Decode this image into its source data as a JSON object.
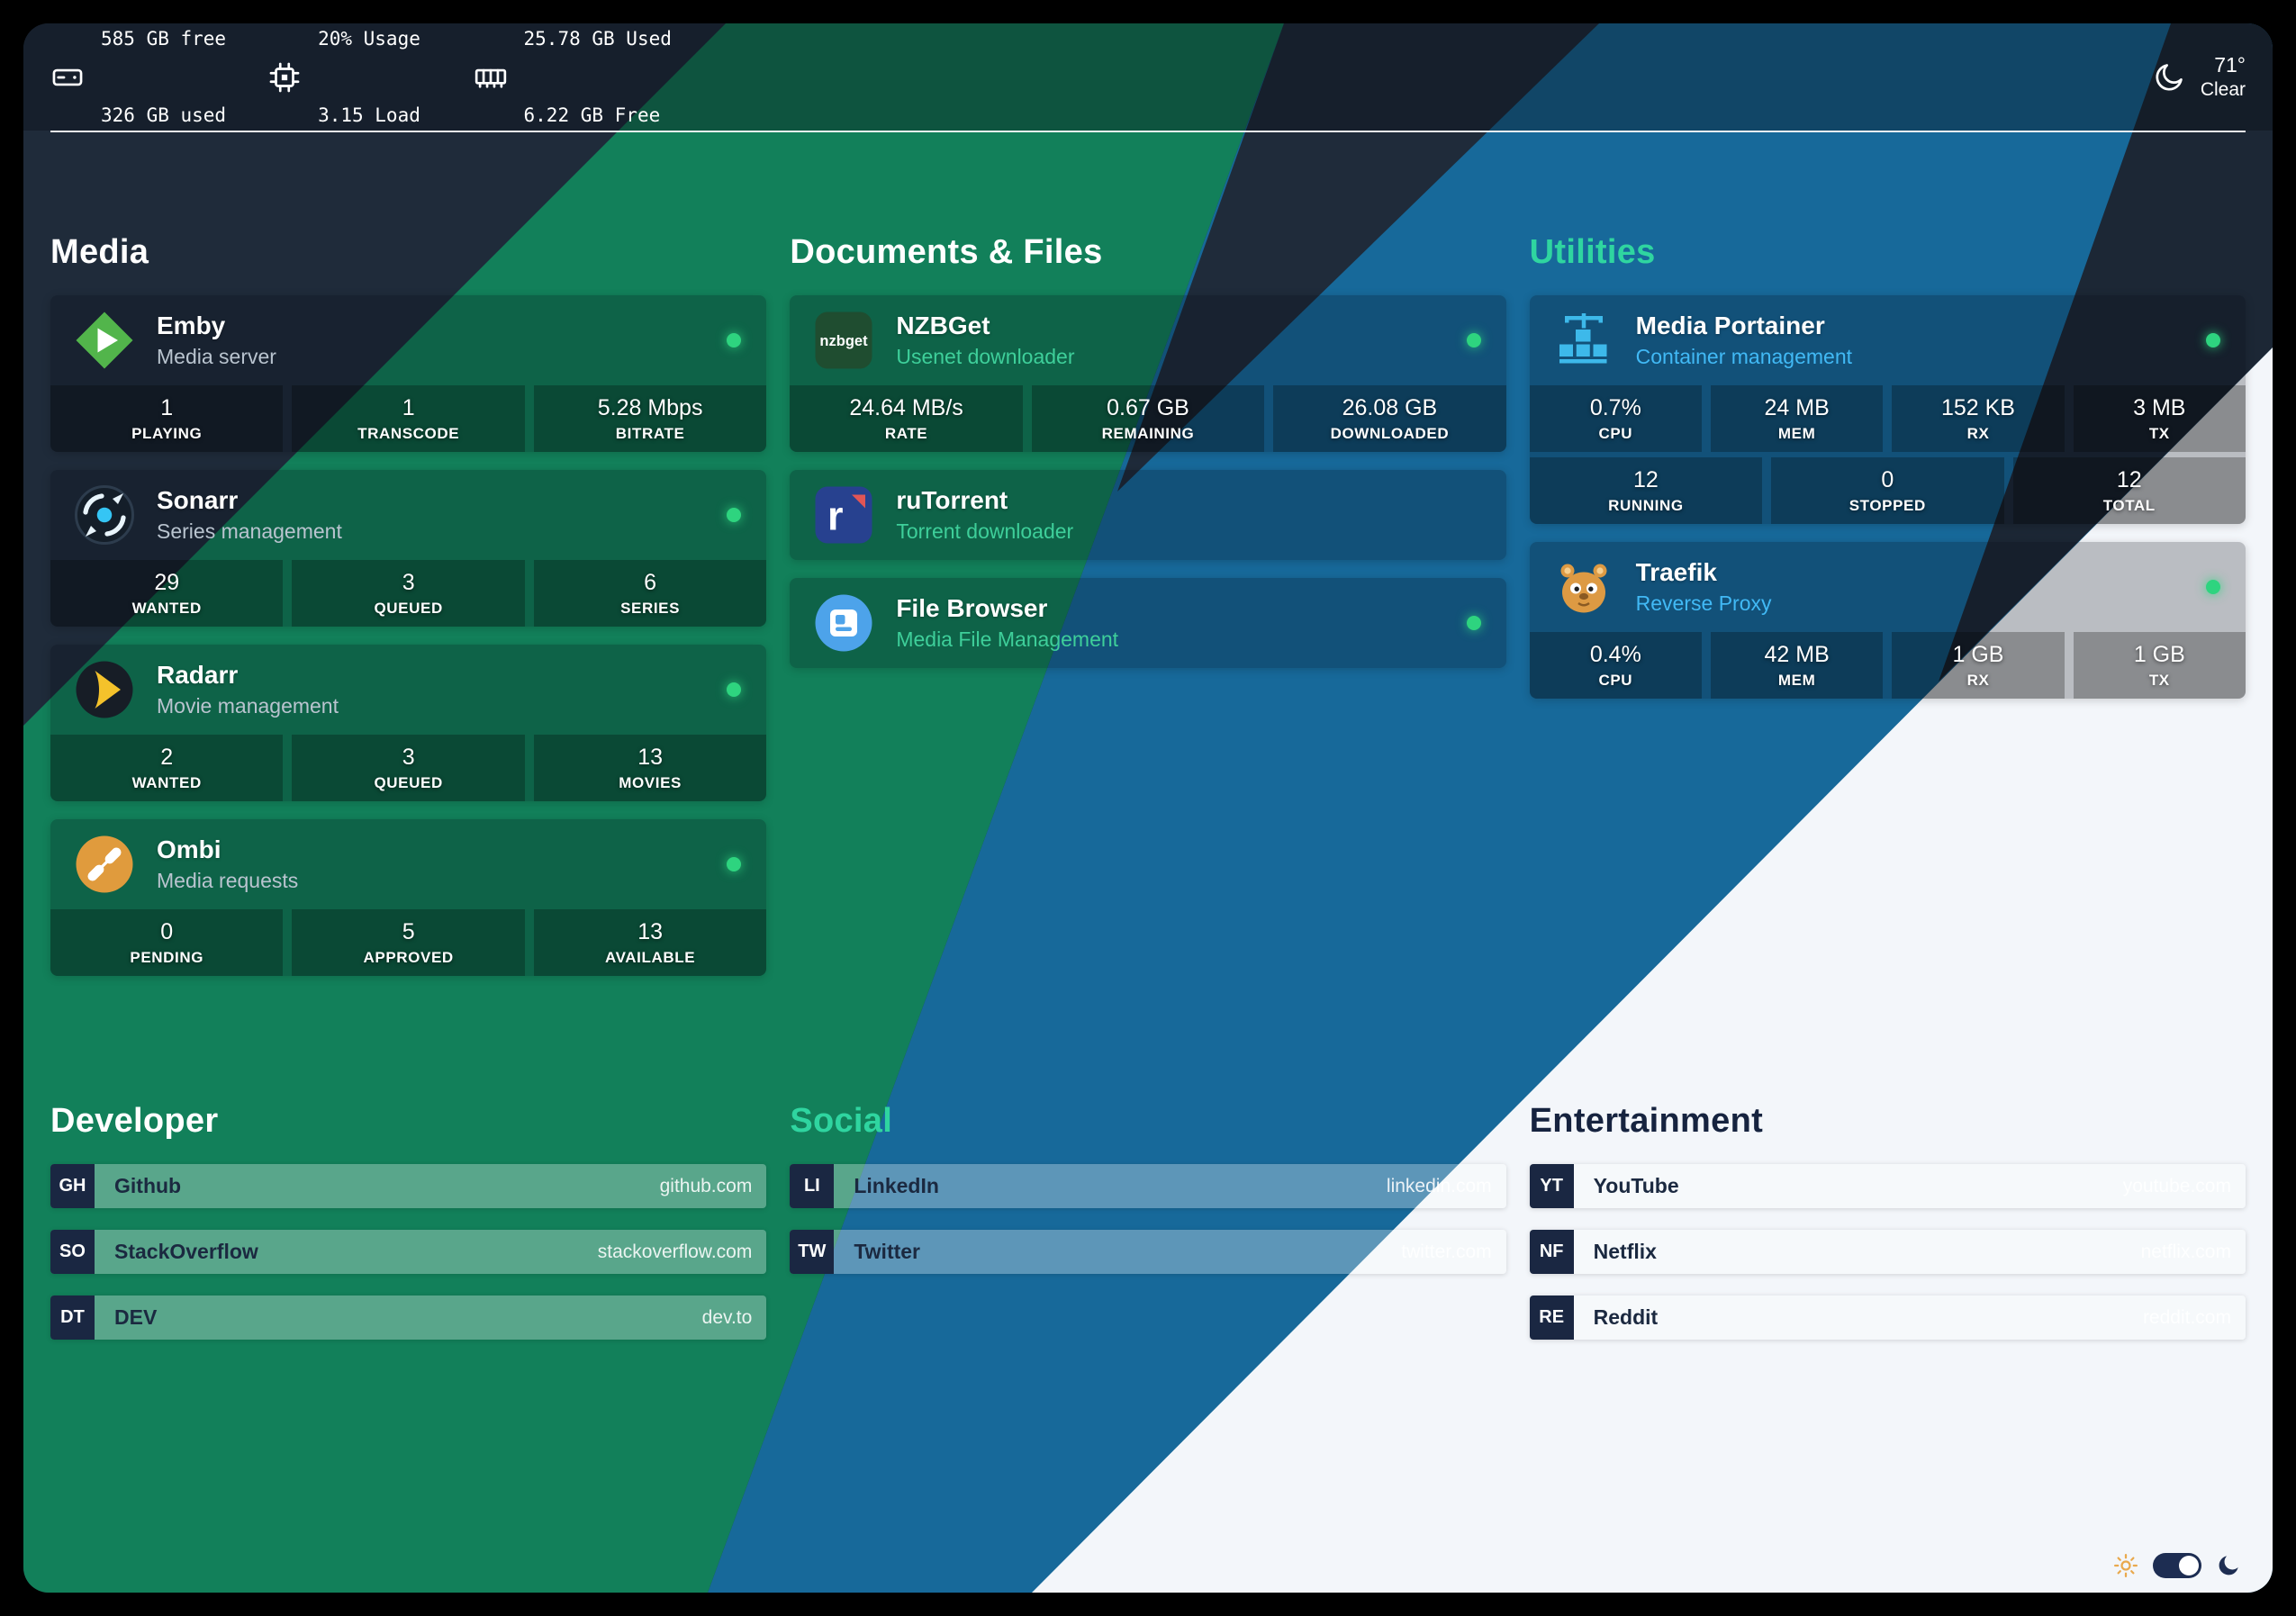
{
  "topbar": {
    "disk": {
      "icon": "hard-drive-icon",
      "line1": "585 GB free",
      "line2": "326 GB used"
    },
    "cpu": {
      "icon": "cpu-icon",
      "line1": "20% Usage",
      "line2": "3.15 Load"
    },
    "memory": {
      "icon": "memory-icon",
      "line1": "25.78 GB Used",
      "line2": "6.22 GB Free"
    },
    "weather": {
      "icon": "moon-icon",
      "temperature": "71°",
      "condition": "Clear"
    }
  },
  "colors": {
    "status_online": "#2ed47f",
    "teal_heading": "#2fd5a0",
    "dark_heading": "#16233f",
    "band_navy": "#1f2b3a",
    "band_green": "#12805a",
    "band_blue": "#17699a",
    "band_white": "#f3f6fa"
  },
  "sections": [
    {
      "title": "Media",
      "title_color": "#ffffff",
      "cards": [
        {
          "app": "emby",
          "icon": "emby-icon",
          "title": "Emby",
          "subtitle": "Media server",
          "subtitle_color": "#b9c4cf",
          "online": true,
          "stats": [
            [
              {
                "value": "1",
                "label": "PLAYING"
              },
              {
                "value": "1",
                "label": "TRANSCODE"
              },
              {
                "value": "5.28 Mbps",
                "label": "BITRATE"
              }
            ]
          ]
        },
        {
          "app": "sonarr",
          "icon": "sonarr-icon",
          "title": "Sonarr",
          "subtitle": "Series management",
          "subtitle_color": "#b9c4cf",
          "online": true,
          "stats": [
            [
              {
                "value": "29",
                "label": "WANTED"
              },
              {
                "value": "3",
                "label": "QUEUED"
              },
              {
                "value": "6",
                "label": "SERIES"
              }
            ]
          ]
        },
        {
          "app": "radarr",
          "icon": "radarr-icon",
          "title": "Radarr",
          "subtitle": "Movie management",
          "subtitle_color": "#b9c4cf",
          "online": true,
          "stats": [
            [
              {
                "value": "2",
                "label": "WANTED"
              },
              {
                "value": "3",
                "label": "QUEUED"
              },
              {
                "value": "13",
                "label": "MOVIES"
              }
            ]
          ]
        },
        {
          "app": "ombi",
          "icon": "ombi-icon",
          "title": "Ombi",
          "subtitle": "Media requests",
          "subtitle_color": "#b9c4cf",
          "online": true,
          "stats": [
            [
              {
                "value": "0",
                "label": "PENDING"
              },
              {
                "value": "5",
                "label": "APPROVED"
              },
              {
                "value": "13",
                "label": "AVAILABLE"
              }
            ]
          ]
        }
      ]
    },
    {
      "title": "Documents & Files",
      "title_color": "#ffffff",
      "cards": [
        {
          "app": "nzbget",
          "icon": "nzbget-icon",
          "title": "NZBGet",
          "subtitle": "Usenet downloader",
          "subtitle_color": "#3ecf9a",
          "online": true,
          "stats": [
            [
              {
                "value": "24.64 MB/s",
                "label": "RATE"
              },
              {
                "value": "0.67 GB",
                "label": "REMAINING"
              },
              {
                "value": "26.08 GB",
                "label": "DOWNLOADED"
              }
            ]
          ]
        },
        {
          "app": "rutorrent",
          "icon": "rutorrent-icon",
          "title": "ruTorrent",
          "subtitle": "Torrent downloader",
          "subtitle_color": "#3ecf9a",
          "online": false,
          "stats": []
        },
        {
          "app": "filebrowser",
          "icon": "filebrowser-icon",
          "title": "File Browser",
          "subtitle": "Media File Management",
          "subtitle_color": "#3ecf9a",
          "online": true,
          "stats": []
        }
      ]
    },
    {
      "title": "Utilities",
      "title_color": "#2fd5a0",
      "cards": [
        {
          "app": "portainer",
          "icon": "portainer-icon",
          "title": "Media Portainer",
          "subtitle": "Container management",
          "subtitle_color": "#41b9f5",
          "online": true,
          "stats": [
            [
              {
                "value": "0.7%",
                "label": "CPU"
              },
              {
                "value": "24 MB",
                "label": "MEM"
              },
              {
                "value": "152 KB",
                "label": "RX"
              },
              {
                "value": "3 MB",
                "label": "TX"
              }
            ],
            [
              {
                "value": "12",
                "label": "RUNNING"
              },
              {
                "value": "0",
                "label": "STOPPED"
              },
              {
                "value": "12",
                "label": "TOTAL"
              }
            ]
          ]
        },
        {
          "app": "traefik",
          "icon": "traefik-icon",
          "title": "Traefik",
          "subtitle": "Reverse Proxy",
          "subtitle_color": "#41b9f5",
          "online": true,
          "stats": [
            [
              {
                "value": "0.4%",
                "label": "CPU"
              },
              {
                "value": "42 MB",
                "label": "MEM"
              },
              {
                "value": "1 GB",
                "label": "RX"
              },
              {
                "value": "1 GB",
                "label": "TX"
              }
            ]
          ]
        }
      ]
    }
  ],
  "link_sections": [
    {
      "title": "Developer",
      "title_color": "#ffffff",
      "links": [
        {
          "initials": "GH",
          "label": "Github",
          "url": "github.com"
        },
        {
          "initials": "SO",
          "label": "StackOverflow",
          "url": "stackoverflow.com"
        },
        {
          "initials": "DT",
          "label": "DEV",
          "url": "dev.to"
        }
      ]
    },
    {
      "title": "Social",
      "title_color": "#2fd5a0",
      "links": [
        {
          "initials": "LI",
          "label": "LinkedIn",
          "url": "linkedin.com"
        },
        {
          "initials": "TW",
          "label": "Twitter",
          "url": "twitter.com"
        }
      ]
    },
    {
      "title": "Entertainment",
      "title_color": "#16233f",
      "links": [
        {
          "initials": "YT",
          "label": "YouTube",
          "url": "youtube.com"
        },
        {
          "initials": "NF",
          "label": "Netflix",
          "url": "netflix.com"
        },
        {
          "initials": "RE",
          "label": "Reddit",
          "url": "reddit.com"
        }
      ]
    }
  ],
  "theme_toggle": {
    "state": "dark",
    "sun_icon": "sun-icon",
    "moon_icon": "moon-icon"
  }
}
